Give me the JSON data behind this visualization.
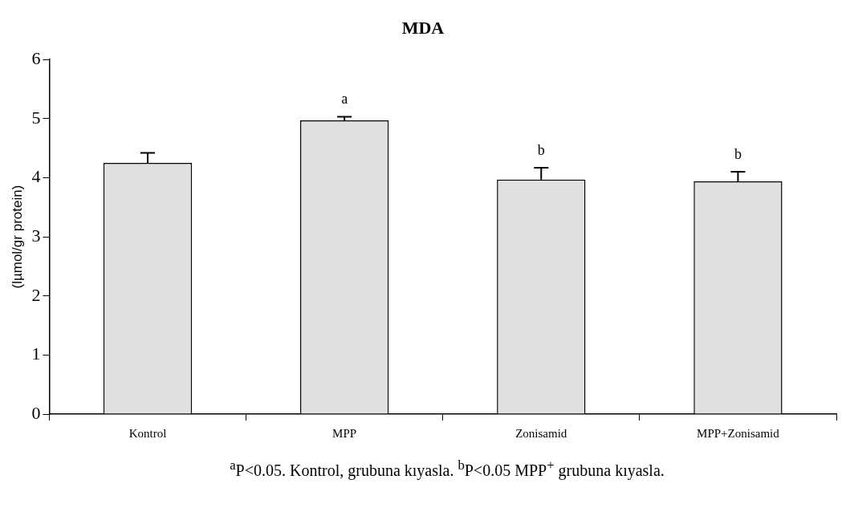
{
  "chart_data": {
    "type": "bar",
    "title": "MDA",
    "ylabel": "(lµmol/gr protein)",
    "categories": [
      "Kontrol",
      "MPP",
      "Zonisamid",
      "MPP+Zonisamid"
    ],
    "values": [
      4.25,
      4.97,
      3.97,
      3.94
    ],
    "color": "#e0e0e0",
    "errors": [
      [
        4.25,
        4.42
      ],
      [
        4.97,
        5.03
      ],
      [
        3.97,
        4.17
      ],
      [
        3.94,
        4.1
      ]
    ],
    "ylim": [
      0,
      6
    ],
    "yticks": [
      0,
      1,
      2,
      3,
      4,
      5,
      6
    ],
    "grid": false,
    "legend": false,
    "annotations": [
      {
        "text": "a",
        "x": "MPP",
        "y": 5.03
      },
      {
        "text": "b",
        "x": "Zonisamid",
        "y": 4.17
      },
      {
        "text": "b",
        "x": "MPP+Zonisamid",
        "y": 4.1
      },
      "$^{a}$P<0.05. Kontrol, grubuna kıyasla. $^{b}$P<0.05 MPP$^{+}$ grubuna kıyasla."
    ]
  }
}
